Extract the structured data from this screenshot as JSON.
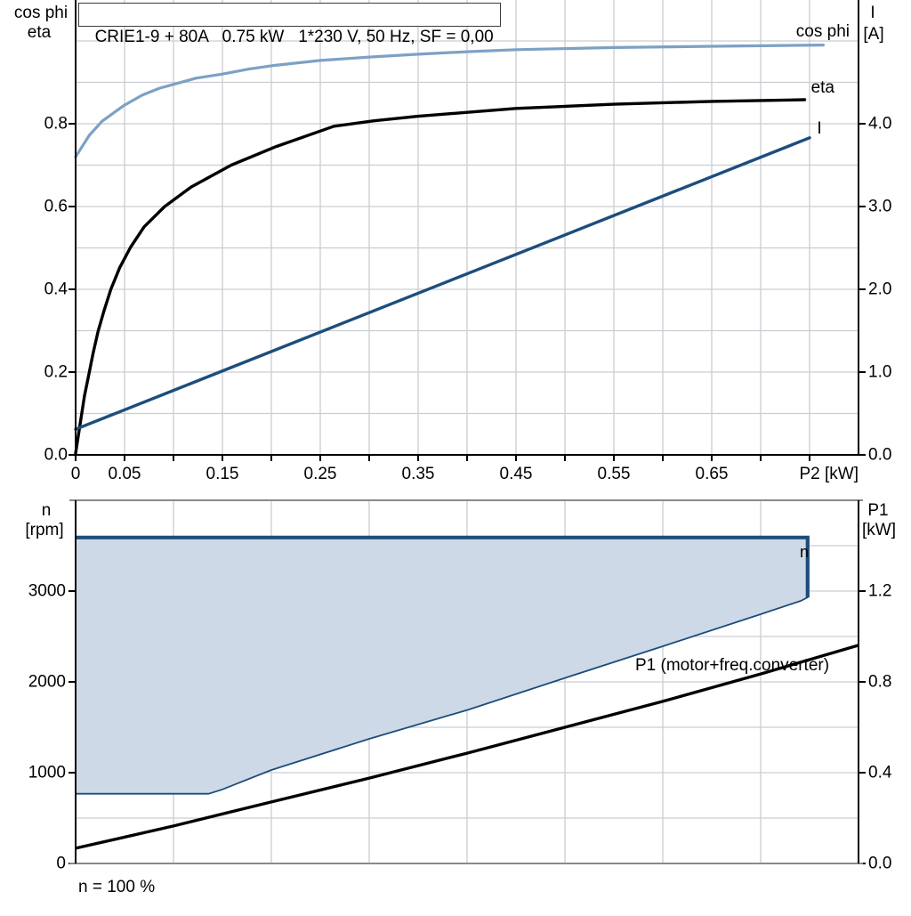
{
  "title": "CRIE1-9 + 80A   0.75 kW   1*230 V, 50 Hz, SF = 0,00",
  "top_chart": {
    "left_axis_title": {
      "line1": "cos phi",
      "line2": "eta"
    },
    "right_axis_title": {
      "line1": "I",
      "line2": "[A]"
    },
    "left_ticks": [
      "0.8",
      "0.6",
      "0.4",
      "0.2",
      "0.0"
    ],
    "right_ticks": [
      "4.0",
      "3.0",
      "2.0",
      "1.0",
      "0.0"
    ],
    "x_ticks": [
      "0",
      "0.05",
      "0.15",
      "0.25",
      "0.35",
      "0.45",
      "0.55",
      "0.65"
    ],
    "x_axis_label": "P2 [kW]",
    "curve_labels": {
      "cos_phi": "cos phi",
      "eta": "eta",
      "current": "I"
    }
  },
  "bottom_chart": {
    "left_axis_title": {
      "line1": "n",
      "line2": "[rpm]"
    },
    "right_axis_title": {
      "line1": "P1",
      "line2": "[kW]"
    },
    "left_ticks": [
      "3000",
      "2000",
      "1000",
      "0"
    ],
    "right_ticks": [
      "1.2",
      "0.8",
      "0.4",
      "0.0"
    ],
    "p1_annotation": "P1 (motor+freq.converter)",
    "n_annotation": "n",
    "footnote": "n = 100 %"
  },
  "colors": {
    "light_blue": "#7da1c4",
    "dark_blue": "#1d4d7c",
    "region_fill": "#cdd9e6",
    "grid": "#c9cdd2",
    "axis_black": "#000000",
    "axis_gray": "#8a8a8a"
  },
  "chart_data": [
    {
      "type": "line",
      "title": "CRIE1-9 + 80A 0.75 kW 1*230 V, 50 Hz, SF = 0,00",
      "xlabel": "P2 [kW]",
      "xlim": [
        0,
        0.8
      ],
      "left_axis": "cos phi / eta",
      "left_ylim": [
        0,
        1.1
      ],
      "right_axis": "I [A]",
      "right_ylim": [
        0,
        5.5
      ],
      "grid": true,
      "series": [
        {
          "name": "cos phi",
          "axis": "left",
          "points": [
            [
              0,
              0.72
            ],
            [
              0.014,
              0.772
            ],
            [
              0.027,
              0.806
            ],
            [
              0.041,
              0.83
            ],
            [
              0.05,
              0.845
            ],
            [
              0.068,
              0.869
            ],
            [
              0.086,
              0.886
            ],
            [
              0.1,
              0.895
            ],
            [
              0.123,
              0.91
            ],
            [
              0.15,
              0.92
            ],
            [
              0.177,
              0.932
            ],
            [
              0.2,
              0.94
            ],
            [
              0.25,
              0.953
            ],
            [
              0.3,
              0.961
            ],
            [
              0.35,
              0.968
            ],
            [
              0.4,
              0.974
            ],
            [
              0.45,
              0.979
            ],
            [
              0.55,
              0.984
            ],
            [
              0.65,
              0.987
            ],
            [
              0.764,
              0.99
            ]
          ]
        },
        {
          "name": "eta",
          "axis": "left",
          "points": [
            [
              0,
              0.004
            ],
            [
              0.009,
              0.142
            ],
            [
              0.014,
              0.2
            ],
            [
              0.018,
              0.247
            ],
            [
              0.023,
              0.299
            ],
            [
              0.029,
              0.348
            ],
            [
              0.036,
              0.4
            ],
            [
              0.045,
              0.452
            ],
            [
              0.056,
              0.501
            ],
            [
              0.07,
              0.551
            ],
            [
              0.091,
              0.6
            ],
            [
              0.118,
              0.647
            ],
            [
              0.159,
              0.7
            ],
            [
              0.205,
              0.745
            ],
            [
              0.264,
              0.794
            ],
            [
              0.305,
              0.807
            ],
            [
              0.35,
              0.818
            ],
            [
              0.45,
              0.837
            ],
            [
              0.55,
              0.847
            ],
            [
              0.65,
              0.854
            ],
            [
              0.745,
              0.858
            ]
          ]
        },
        {
          "name": "I",
          "axis": "right",
          "points": [
            [
              0,
              0.31
            ],
            [
              0.75,
              3.83
            ]
          ]
        }
      ]
    },
    {
      "type": "line",
      "xlim": [
        0,
        0.8
      ],
      "left_axis": "n [rpm]",
      "left_ylim": [
        0,
        4000
      ],
      "right_axis": "P1 [kW]",
      "right_ylim": [
        0,
        1.6
      ],
      "grid": true,
      "footnote": "n = 100 %",
      "region": {
        "name": "n speed operating range",
        "axis": "left",
        "points": [
          [
            0,
            3590
          ],
          [
            0.748,
            3590
          ],
          [
            0.748,
            2930
          ],
          [
            0.741,
            2892
          ],
          [
            0.7,
            2745
          ],
          [
            0.6,
            2392
          ],
          [
            0.5,
            2043
          ],
          [
            0.402,
            1696
          ],
          [
            0.3,
            1373
          ],
          [
            0.2,
            1029
          ],
          [
            0.15,
            816
          ],
          [
            0.136,
            768
          ],
          [
            0,
            768
          ]
        ]
      },
      "series": [
        {
          "name": "P1 (motor+freq.converter)",
          "axis": "right",
          "points": [
            [
              0,
              0.067
            ],
            [
              0.1,
              0.165
            ],
            [
              0.2,
              0.271
            ],
            [
              0.3,
              0.376
            ],
            [
              0.4,
              0.486
            ],
            [
              0.5,
              0.6
            ],
            [
              0.6,
              0.714
            ],
            [
              0.7,
              0.835
            ],
            [
              0.8,
              0.961
            ]
          ]
        },
        {
          "name": "n",
          "axis": "left",
          "points": [
            [
              0,
              3590
            ],
            [
              0.748,
              3590
            ],
            [
              0.748,
              2930
            ]
          ]
        }
      ]
    }
  ]
}
